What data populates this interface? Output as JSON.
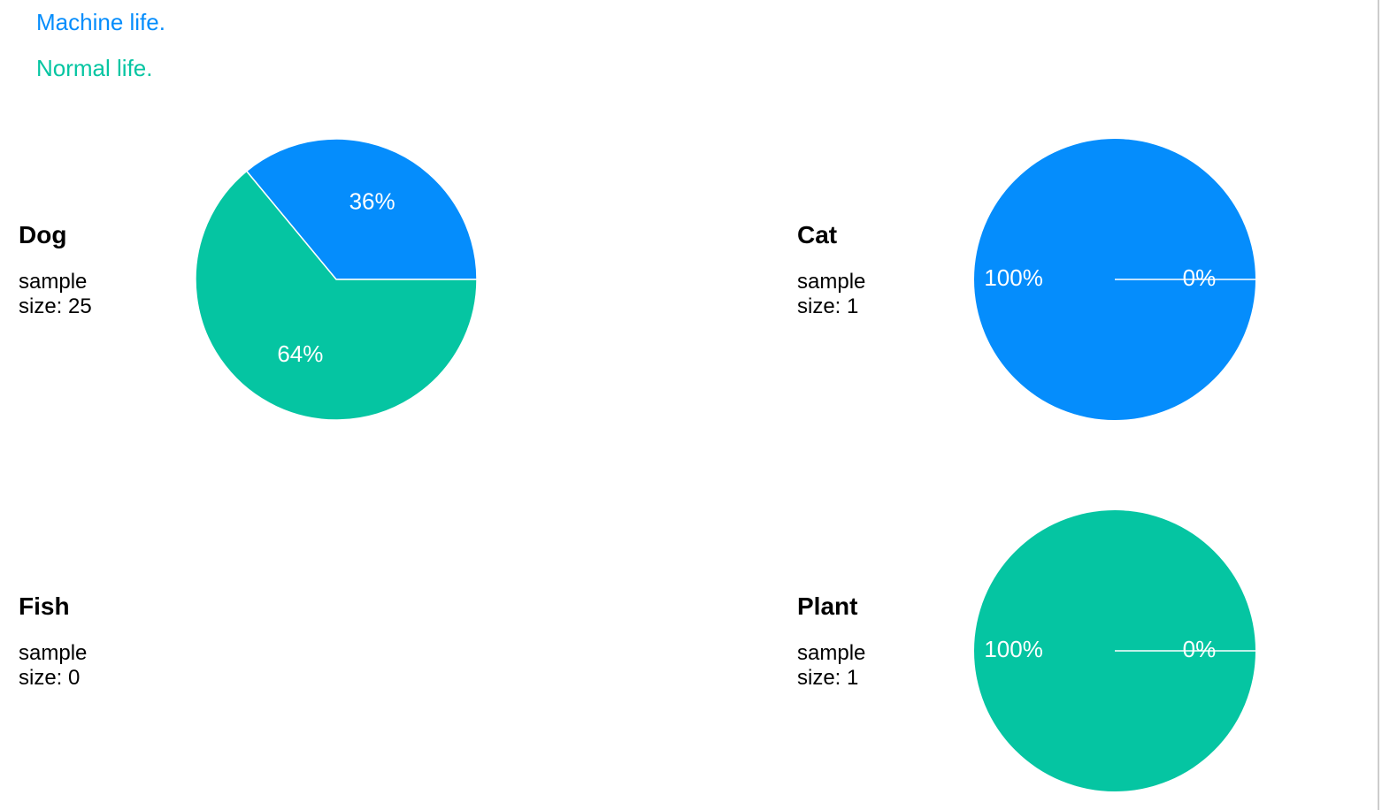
{
  "legend": [
    {
      "name": "Machine life.",
      "color": "#058dfc"
    },
    {
      "name": "Normal life.",
      "color": "#05c5a2"
    }
  ],
  "chart_data": [
    {
      "type": "pie",
      "title": "Dog",
      "subtitle": "sample size: 25",
      "values": [
        36,
        64
      ],
      "value_labels": [
        "36%",
        "64%"
      ]
    },
    {
      "type": "pie",
      "title": "Cat",
      "subtitle": "sample size: 1",
      "values": [
        100,
        0
      ],
      "value_labels": [
        "100%",
        "0%"
      ]
    },
    {
      "type": "pie",
      "title": "Fish",
      "subtitle": "sample size: 0"
    },
    {
      "type": "pie",
      "title": "Plant",
      "subtitle": "sample size: 1",
      "values": [
        0,
        100
      ],
      "value_labels": [
        "0%",
        "100%"
      ]
    }
  ]
}
